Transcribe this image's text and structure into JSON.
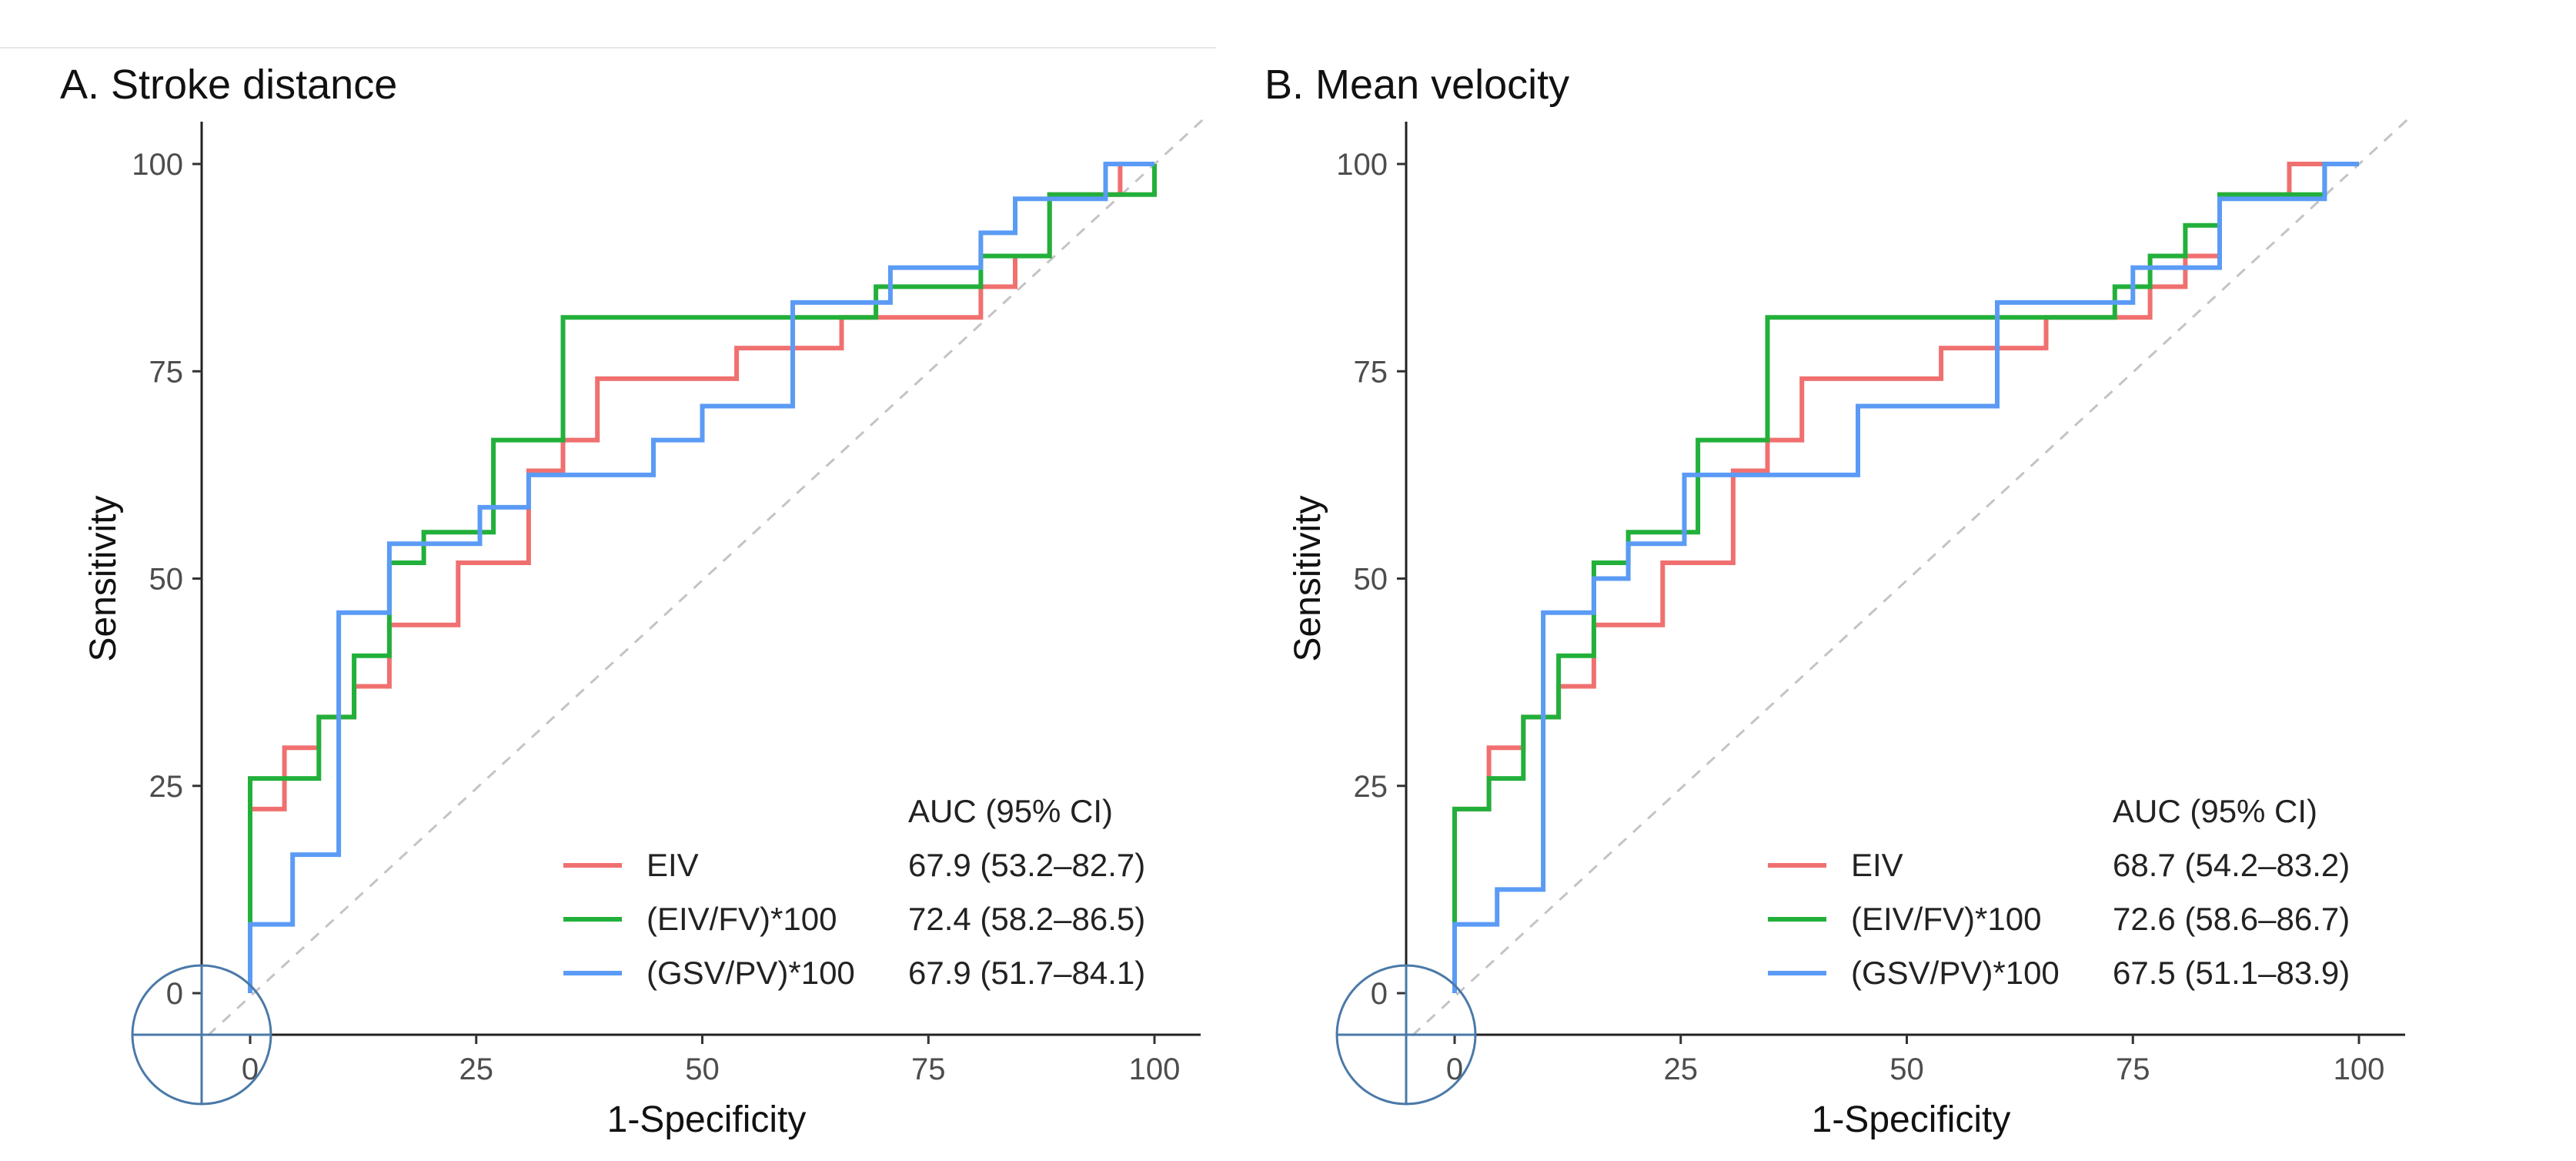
{
  "chart_data": [
    {
      "type": "line",
      "panel": "A",
      "title": "A. Stroke distance",
      "xlabel": "1-Specificity",
      "ylabel": "Sensitivity",
      "xlim": [
        0,
        100
      ],
      "ylim": [
        0,
        100
      ],
      "xticks": [
        "0",
        "25",
        "50",
        "75",
        "100"
      ],
      "yticks": [
        "0",
        "25",
        "50",
        "75",
        "100"
      ],
      "legend_position": "bottom-right",
      "legend_header": "AUC (95% CI)",
      "reference_line": "diagonal dashed",
      "series": [
        {
          "name": "EIV",
          "color": "#f07070",
          "auc": "67.9 (53.2–82.7)",
          "x": [
            0,
            0,
            3.8,
            3.8,
            7.6,
            7.6,
            11.5,
            11.5,
            15.4,
            15.4,
            23,
            23,
            30.8,
            30.8,
            34.6,
            34.6,
            38.4,
            38.4,
            53.8,
            53.8,
            65.4,
            65.4,
            80.8,
            80.8,
            84.6,
            84.6,
            88.4,
            88.4,
            96.2,
            96.2,
            100
          ],
          "y": [
            0,
            22.2,
            22.2,
            29.6,
            29.6,
            33.3,
            33.3,
            37,
            37,
            44.4,
            44.4,
            51.9,
            51.9,
            63,
            63,
            66.7,
            66.7,
            74.1,
            74.1,
            77.8,
            77.8,
            81.5,
            81.5,
            85.2,
            85.2,
            88.9,
            88.9,
            96.3,
            96.3,
            100,
            100
          ]
        },
        {
          "name": "(EIV/FV)*100",
          "color": "#22b03a",
          "auc": "72.4 (58.2–86.5)",
          "x": [
            0,
            0,
            7.6,
            7.6,
            11.5,
            11.5,
            15.4,
            15.4,
            19.2,
            19.2,
            26.9,
            26.9,
            34.6,
            34.6,
            69.2,
            69.2,
            80.8,
            80.8,
            88.4,
            88.4,
            100,
            100
          ],
          "y": [
            8.3,
            25.9,
            25.9,
            33.3,
            33.3,
            40.7,
            40.7,
            51.9,
            51.9,
            55.6,
            55.6,
            66.7,
            66.7,
            81.5,
            81.5,
            85.2,
            85.2,
            88.9,
            88.9,
            96.3,
            96.3,
            100
          ]
        },
        {
          "name": "(GSV/PV)*100",
          "color": "#5b9bf5",
          "auc": "67.9 (51.7–84.1)",
          "x": [
            0,
            0,
            4.7,
            4.7,
            9.8,
            9.8,
            15.4,
            15.4,
            25.4,
            25.4,
            30.8,
            30.8,
            44.6,
            44.6,
            50,
            50,
            60,
            60,
            70.8,
            70.8,
            80.8,
            80.8,
            84.6,
            84.6,
            94.6,
            94.6,
            100
          ],
          "y": [
            0,
            8.3,
            8.3,
            16.7,
            16.7,
            45.9,
            45.9,
            54.2,
            54.2,
            58.6,
            58.6,
            62.5,
            62.5,
            66.7,
            66.7,
            70.8,
            70.8,
            83.3,
            83.3,
            87.5,
            87.5,
            91.7,
            91.7,
            95.8,
            95.8,
            100,
            100
          ]
        }
      ]
    },
    {
      "type": "line",
      "panel": "B",
      "title": "B. Mean velocity",
      "xlabel": "1-Specificity",
      "ylabel": "Sensitivity",
      "xlim": [
        0,
        100
      ],
      "ylim": [
        0,
        100
      ],
      "xticks": [
        "0",
        "25",
        "50",
        "75",
        "100"
      ],
      "yticks": [
        "0",
        "25",
        "50",
        "75",
        "100"
      ],
      "legend_position": "bottom-right",
      "legend_header": "AUC (95% CI)",
      "reference_line": "diagonal dashed",
      "series": [
        {
          "name": "EIV",
          "color": "#f07070",
          "auc": "68.7 (54.2–83.2)",
          "x": [
            0,
            0,
            3.8,
            3.8,
            7.6,
            7.6,
            11.5,
            11.5,
            15.4,
            15.4,
            23,
            23,
            30.8,
            30.8,
            34.6,
            34.6,
            38.4,
            38.4,
            53.8,
            53.8,
            65.4,
            65.4,
            76.9,
            76.9,
            80.8,
            80.8,
            84.6,
            84.6,
            92.3,
            92.3,
            100
          ],
          "y": [
            0,
            22.2,
            22.2,
            29.6,
            29.6,
            33.3,
            33.3,
            37,
            37,
            44.4,
            44.4,
            51.9,
            51.9,
            63,
            63,
            66.7,
            66.7,
            74.1,
            74.1,
            77.8,
            77.8,
            81.5,
            81.5,
            85.2,
            85.2,
            88.9,
            88.9,
            96.3,
            96.3,
            100,
            100
          ]
        },
        {
          "name": "(EIV/FV)*100",
          "color": "#22b03a",
          "auc": "72.6 (58.6–86.7)",
          "x": [
            0,
            0,
            3.8,
            3.8,
            7.6,
            7.6,
            11.5,
            11.5,
            15.4,
            15.4,
            19.2,
            19.2,
            26.9,
            26.9,
            34.6,
            34.6,
            73,
            73,
            76.9,
            76.9,
            80.8,
            80.8,
            84.6,
            84.6,
            96.2,
            96.2,
            100
          ],
          "y": [
            8.3,
            22.2,
            22.2,
            25.9,
            25.9,
            33.3,
            33.3,
            40.7,
            40.7,
            51.9,
            51.9,
            55.6,
            55.6,
            66.7,
            66.7,
            81.5,
            81.5,
            85.2,
            85.2,
            88.9,
            88.9,
            92.6,
            92.6,
            96.3,
            96.3,
            100,
            100
          ]
        },
        {
          "name": "(GSV/PV)*100",
          "color": "#5b9bf5",
          "auc": "67.5 (51.1–83.9)",
          "x": [
            0,
            0,
            4.7,
            4.7,
            9.8,
            9.8,
            15.4,
            15.4,
            19.2,
            19.2,
            25.4,
            25.4,
            44.6,
            44.6,
            60,
            60,
            75,
            75,
            84.6,
            84.6,
            96.2,
            96.2,
            100
          ],
          "y": [
            0,
            8.3,
            8.3,
            12.5,
            12.5,
            45.9,
            45.9,
            50,
            50,
            54.2,
            54.2,
            62.5,
            62.5,
            70.8,
            70.8,
            83.3,
            83.3,
            87.5,
            87.5,
            95.8,
            95.8,
            100,
            100
          ]
        }
      ]
    }
  ]
}
